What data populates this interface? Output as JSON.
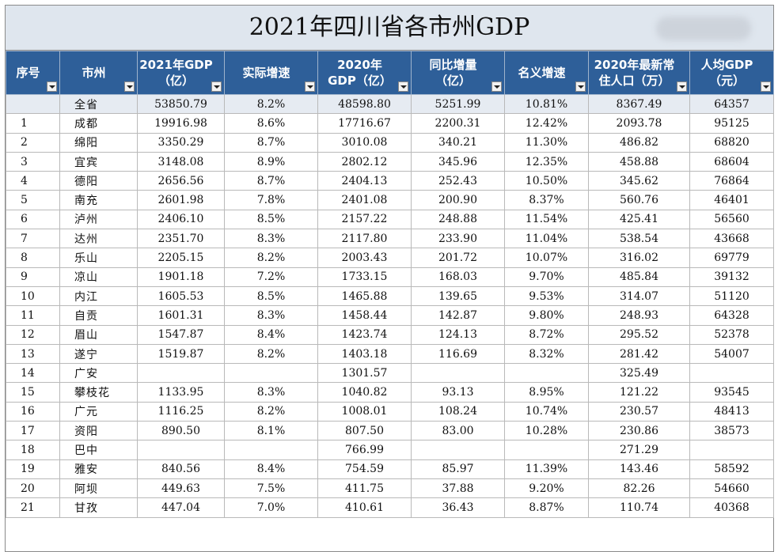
{
  "title": "2021年四川省各市州GDP",
  "headers": [
    {
      "line1": "序号",
      "line2": ""
    },
    {
      "line1": "市州",
      "line2": ""
    },
    {
      "line1": "2021年GDP",
      "line2": "（亿）"
    },
    {
      "line1": "实际增速",
      "line2": ""
    },
    {
      "line1": "2020年",
      "line2": "GDP（亿）"
    },
    {
      "line1": "同比增量",
      "line2": "（亿）"
    },
    {
      "line1": "名义增速",
      "line2": ""
    },
    {
      "line1": "2020年最新常",
      "line2": "住人口（万）"
    },
    {
      "line1": "人均GDP",
      "line2": "（元）"
    }
  ],
  "rows": [
    [
      "",
      "全省",
      "53850.79",
      "8.2%",
      "48598.80",
      "5251.99",
      "10.81%",
      "8367.49",
      "64357"
    ],
    [
      "1",
      "成都",
      "19916.98",
      "8.6%",
      "17716.67",
      "2200.31",
      "12.42%",
      "2093.78",
      "95125"
    ],
    [
      "2",
      "绵阳",
      "3350.29",
      "8.7%",
      "3010.08",
      "340.21",
      "11.30%",
      "486.82",
      "68820"
    ],
    [
      "3",
      "宜宾",
      "3148.08",
      "8.9%",
      "2802.12",
      "345.96",
      "12.35%",
      "458.88",
      "68604"
    ],
    [
      "4",
      "德阳",
      "2656.56",
      "8.7%",
      "2404.13",
      "252.43",
      "10.50%",
      "345.62",
      "76864"
    ],
    [
      "5",
      "南充",
      "2601.98",
      "7.8%",
      "2401.08",
      "200.90",
      "8.37%",
      "560.76",
      "46401"
    ],
    [
      "6",
      "泸州",
      "2406.10",
      "8.5%",
      "2157.22",
      "248.88",
      "11.54%",
      "425.41",
      "56560"
    ],
    [
      "7",
      "达州",
      "2351.70",
      "8.3%",
      "2117.80",
      "233.90",
      "11.04%",
      "538.54",
      "43668"
    ],
    [
      "8",
      "乐山",
      "2205.15",
      "8.2%",
      "2003.43",
      "201.72",
      "10.07%",
      "316.02",
      "69779"
    ],
    [
      "9",
      "凉山",
      "1901.18",
      "7.2%",
      "1733.15",
      "168.03",
      "9.70%",
      "485.84",
      "39132"
    ],
    [
      "10",
      "内江",
      "1605.53",
      "8.5%",
      "1465.88",
      "139.65",
      "9.53%",
      "314.07",
      "51120"
    ],
    [
      "11",
      "自贡",
      "1601.31",
      "8.3%",
      "1458.44",
      "142.87",
      "9.80%",
      "248.93",
      "64328"
    ],
    [
      "12",
      "眉山",
      "1547.87",
      "8.4%",
      "1423.74",
      "124.13",
      "8.72%",
      "295.52",
      "52378"
    ],
    [
      "13",
      "遂宁",
      "1519.87",
      "8.2%",
      "1403.18",
      "116.69",
      "8.32%",
      "281.42",
      "54007"
    ],
    [
      "14",
      "广安",
      "",
      "",
      "1301.57",
      "",
      "",
      "325.49",
      ""
    ],
    [
      "15",
      "攀枝花",
      "1133.95",
      "8.3%",
      "1040.82",
      "93.13",
      "8.95%",
      "121.22",
      "93545"
    ],
    [
      "16",
      "广元",
      "1116.25",
      "8.2%",
      "1008.01",
      "108.24",
      "10.74%",
      "230.57",
      "48413"
    ],
    [
      "17",
      "资阳",
      "890.50",
      "8.1%",
      "807.50",
      "83.00",
      "10.28%",
      "230.86",
      "38573"
    ],
    [
      "18",
      "巴中",
      "",
      "",
      "766.99",
      "",
      "",
      "271.29",
      ""
    ],
    [
      "19",
      "雅安",
      "840.56",
      "8.4%",
      "754.59",
      "85.97",
      "11.39%",
      "143.46",
      "58592"
    ],
    [
      "20",
      "阿坝",
      "449.63",
      "7.5%",
      "411.75",
      "37.88",
      "9.20%",
      "82.26",
      "54660"
    ],
    [
      "21",
      "甘孜",
      "447.04",
      "7.0%",
      "410.61",
      "36.43",
      "8.87%",
      "110.74",
      "40368"
    ]
  ]
}
